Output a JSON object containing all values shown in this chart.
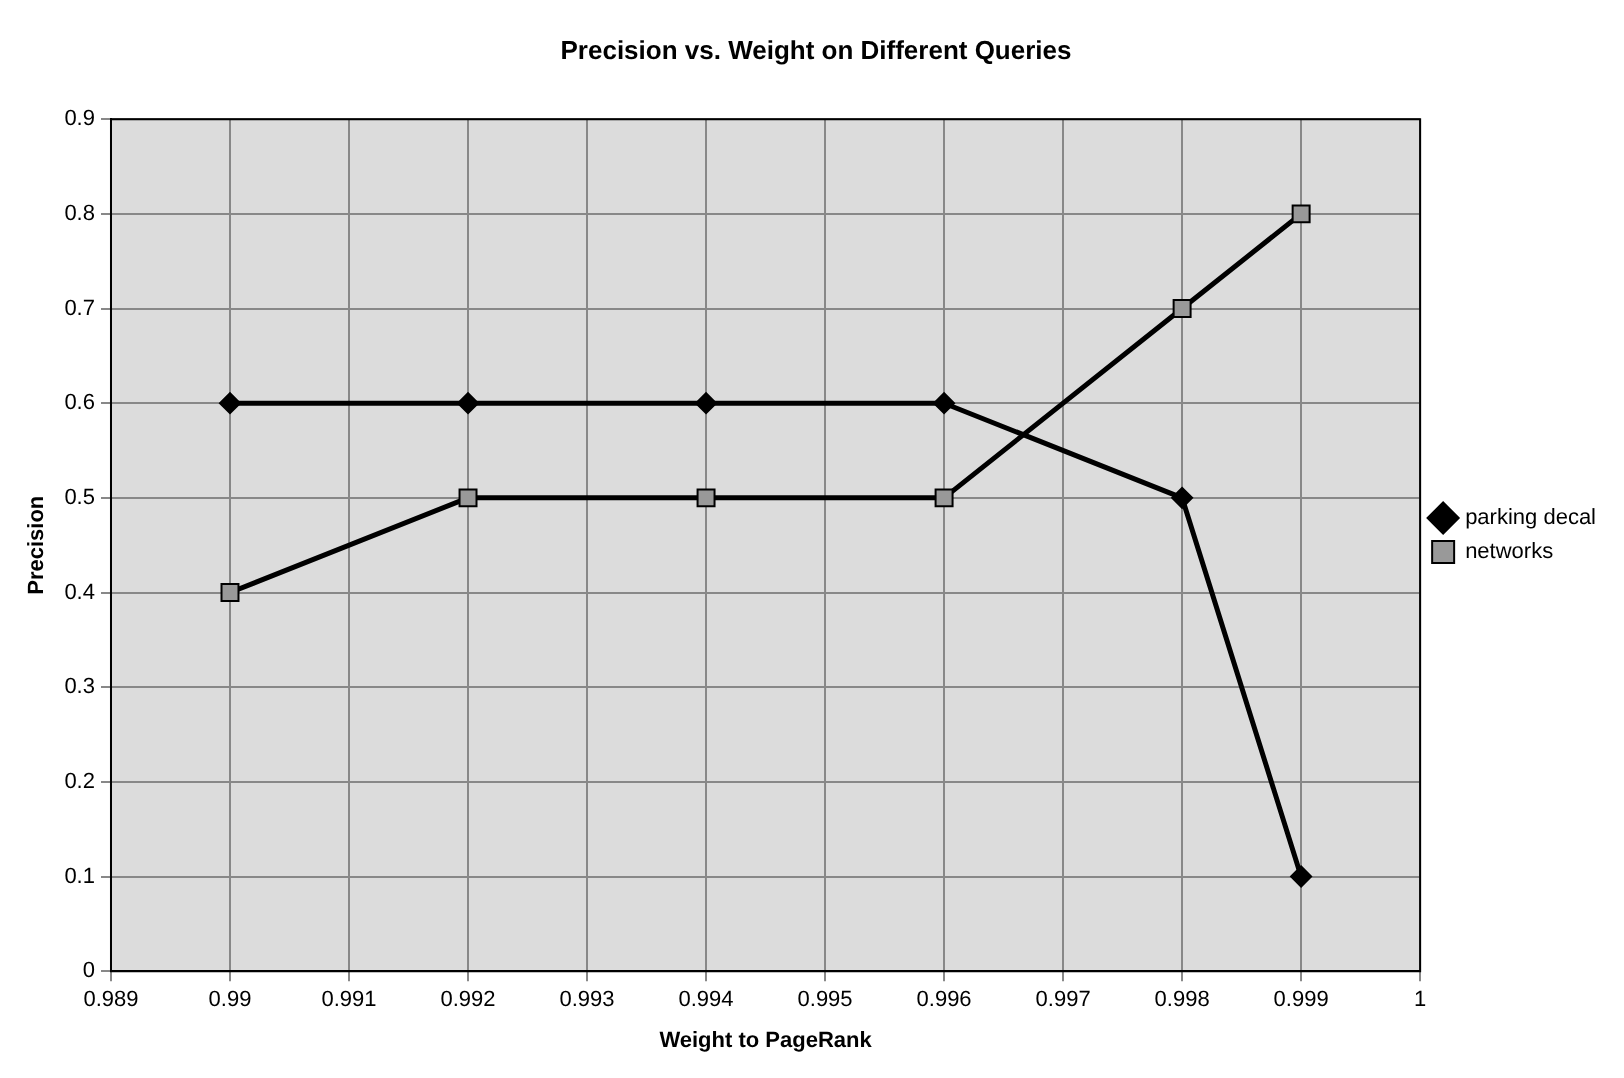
{
  "chart_data": {
    "type": "line",
    "title": "Precision vs. Weight on Different Queries",
    "xlabel": "Weight to PageRank",
    "ylabel": "Precision",
    "x": [
      0.99,
      0.992,
      0.994,
      0.996,
      0.998,
      0.999
    ],
    "series": [
      {
        "name": "parking decal",
        "color": "#000000",
        "marker": "diamond",
        "values": [
          0.6,
          0.6,
          0.6,
          0.6,
          0.5,
          0.1
        ]
      },
      {
        "name": "networks",
        "color": "#000000",
        "marker": "square",
        "values": [
          0.4,
          0.5,
          0.5,
          0.5,
          0.7,
          0.8
        ]
      }
    ],
    "xlim": [
      0.989,
      1
    ],
    "xticks": [
      0.989,
      0.99,
      0.991,
      0.992,
      0.993,
      0.994,
      0.995,
      0.996,
      0.997,
      0.998,
      0.999,
      1
    ],
    "ylim": [
      0,
      0.9
    ],
    "yticks": [
      0,
      0.1,
      0.2,
      0.3,
      0.4,
      0.5,
      0.6,
      0.7,
      0.8,
      0.9
    ],
    "grid": true,
    "legend": "right",
    "line_style": "solid"
  }
}
